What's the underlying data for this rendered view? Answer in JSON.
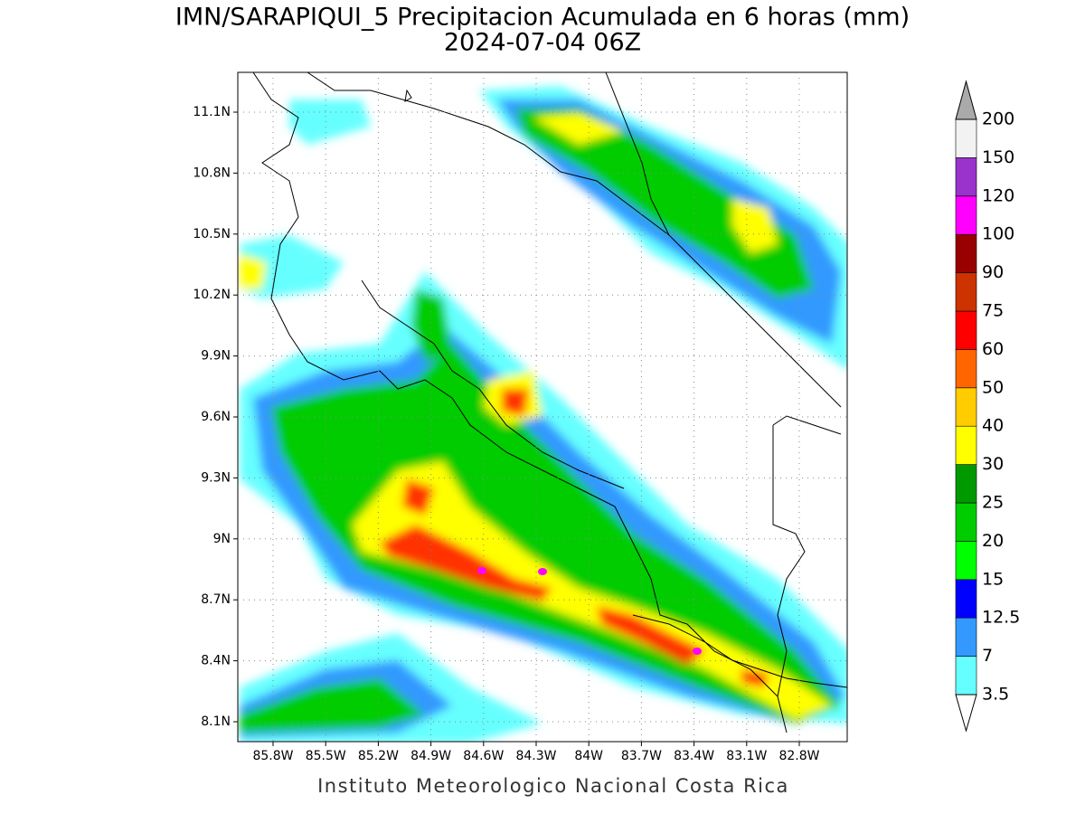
{
  "title": "IMN/SARAPIQUI_5 Precipitacion Acumulada en 6 horas (mm)",
  "subtitle": "2024-07-04 06Z",
  "map": {
    "lat_ticks": [
      {
        "value": 11.1,
        "label": "11.1N"
      },
      {
        "value": 10.8,
        "label": "10.8N"
      },
      {
        "value": 10.5,
        "label": "10.5N"
      },
      {
        "value": 10.2,
        "label": "10.2N"
      },
      {
        "value": 9.9,
        "label": "9.9N"
      },
      {
        "value": 9.6,
        "label": "9.6N"
      },
      {
        "value": 9.3,
        "label": "9.3N"
      },
      {
        "value": 9,
        "label": "9N"
      },
      {
        "value": 8.7,
        "label": "8.7N"
      },
      {
        "value": 8.4,
        "label": "8.4N"
      },
      {
        "value": 8.1,
        "label": "8.1N"
      }
    ],
    "lon_ticks": [
      {
        "value": -85.8,
        "label": "85.8W"
      },
      {
        "value": -85.5,
        "label": "85.5W"
      },
      {
        "value": -85.2,
        "label": "85.2W"
      },
      {
        "value": -84.9,
        "label": "84.9W"
      },
      {
        "value": -84.6,
        "label": "84.6W"
      },
      {
        "value": -84.3,
        "label": "84.3W"
      },
      {
        "value": -84,
        "label": "84W"
      },
      {
        "value": -83.7,
        "label": "83.7W"
      },
      {
        "value": -83.4,
        "label": "83.4W"
      },
      {
        "value": -83.1,
        "label": "83.1W"
      },
      {
        "value": -82.8,
        "label": "82.8W"
      }
    ]
  },
  "colorbar": {
    "levels": [
      3.5,
      7,
      12.5,
      15,
      20,
      25,
      30,
      40,
      50,
      60,
      75,
      90,
      100,
      120,
      150,
      200
    ],
    "colors": [
      "#66ffff",
      "#3399ff",
      "#0000ff",
      "#00ff00",
      "#00cc00",
      "#009900",
      "#ffff00",
      "#ffcc00",
      "#ff6600",
      "#ff0000",
      "#cc3300",
      "#990000",
      "#ff00ff",
      "#9933cc",
      "#f2f2f2"
    ],
    "under_color": "#ffffff",
    "over_color": "#aaaaaa"
  },
  "footer": "Instituto Meteorologico Nacional Costa Rica"
}
